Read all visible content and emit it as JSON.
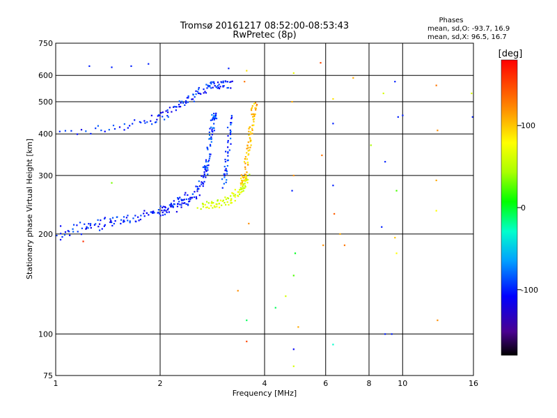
{
  "title_line1": "Tromsø 20161217 08:52:00-08:53:43",
  "title_line2": "RwPretec (8p)",
  "phases": {
    "heading": "Phases",
    "o_line": "mean, sd,O: -93.7, 16.9",
    "x_line": "mean, sd,X:  96.5, 16.7"
  },
  "colorbar": {
    "label": "[deg]",
    "ticks": [
      "100",
      "0",
      "-100"
    ],
    "range": [
      -180,
      180
    ]
  },
  "chart_data": {
    "type": "scatter",
    "xlabel": "Frequency [MHz]",
    "ylabel": "Stationary phase Virtual Height [km]",
    "x_scale": "log",
    "y_scale": "log",
    "xlim": [
      1,
      16
    ],
    "ylim": [
      75,
      750
    ],
    "x_ticks": [
      "1",
      "2",
      "4",
      "6",
      "8",
      "10",
      "16"
    ],
    "y_ticks": [
      "75",
      "100",
      "200",
      "300",
      "400",
      "500",
      "600",
      "750"
    ],
    "grid": true,
    "traces": [
      {
        "freq": [
          1.0,
          1.5,
          1.9,
          2.1,
          2.3,
          2.5,
          2.7,
          2.85,
          3.0,
          3.2
        ],
        "height": [
          400,
          420,
          440,
          460,
          490,
          520,
          550,
          560,
          570,
          560
        ],
        "phase": -100
      },
      {
        "freq": [
          1.0,
          1.3,
          1.6,
          2.0,
          2.2,
          2.4,
          2.55,
          2.65,
          2.75
        ],
        "height": [
          205,
          215,
          222,
          232,
          240,
          250,
          265,
          290,
          330
        ],
        "phase": -100
      },
      {
        "freq": [
          1.0,
          1.3,
          1.6,
          2.0,
          2.2,
          2.4
        ],
        "height": [
          195,
          210,
          222,
          235,
          250,
          265
        ],
        "phase": -100
      },
      {
        "freq": [
          2.7,
          2.75,
          2.8,
          2.85,
          2.9
        ],
        "height": [
          300,
          350,
          400,
          440,
          460
        ],
        "phase": -90
      },
      {
        "freq": [
          3.05,
          3.1,
          3.15,
          3.2
        ],
        "height": [
          280,
          320,
          380,
          450
        ],
        "phase": -95
      },
      {
        "freq": [
          2.6,
          2.8,
          3.0,
          3.2,
          3.35,
          3.5,
          3.6
        ],
        "height": [
          245,
          245,
          248,
          255,
          265,
          280,
          300
        ],
        "phase": 60
      },
      {
        "freq": [
          3.4,
          3.5,
          3.55,
          3.6,
          3.65,
          3.7,
          3.75
        ],
        "height": [
          280,
          300,
          330,
          370,
          410,
          460,
          500
        ],
        "phase": 100
      }
    ],
    "scatter_points": [
      {
        "freq": 1.25,
        "height": 640,
        "phase": -100
      },
      {
        "freq": 1.45,
        "height": 635,
        "phase": -100
      },
      {
        "freq": 1.65,
        "height": 640,
        "phase": -100
      },
      {
        "freq": 1.85,
        "height": 650,
        "phase": -100
      },
      {
        "freq": 3.15,
        "height": 630,
        "phase": -100
      },
      {
        "freq": 3.5,
        "height": 575,
        "phase": 130
      },
      {
        "freq": 3.55,
        "height": 620,
        "phase": 90
      },
      {
        "freq": 3.8,
        "height": 490,
        "phase": 140
      },
      {
        "freq": 4.85,
        "height": 610,
        "phase": 70
      },
      {
        "freq": 4.8,
        "height": 500,
        "phase": 110
      },
      {
        "freq": 4.85,
        "height": 300,
        "phase": 120
      },
      {
        "freq": 4.8,
        "height": 270,
        "phase": -100
      },
      {
        "freq": 4.9,
        "height": 175,
        "phase": 0
      },
      {
        "freq": 4.85,
        "height": 150,
        "phase": 20
      },
      {
        "freq": 4.6,
        "height": 130,
        "phase": 60
      },
      {
        "freq": 4.85,
        "height": 90,
        "phase": -110
      },
      {
        "freq": 5.8,
        "height": 655,
        "phase": 150
      },
      {
        "freq": 5.85,
        "height": 345,
        "phase": 130
      },
      {
        "freq": 5.9,
        "height": 185,
        "phase": 120
      },
      {
        "freq": 6.3,
        "height": 510,
        "phase": 90
      },
      {
        "freq": 6.3,
        "height": 430,
        "phase": -100
      },
      {
        "freq": 6.3,
        "height": 280,
        "phase": -100
      },
      {
        "freq": 6.35,
        "height": 230,
        "phase": 140
      },
      {
        "freq": 6.6,
        "height": 200,
        "phase": 110
      },
      {
        "freq": 6.8,
        "height": 185,
        "phase": 130
      },
      {
        "freq": 6.3,
        "height": 93,
        "phase": -30
      },
      {
        "freq": 8.1,
        "height": 370,
        "phase": 40
      },
      {
        "freq": 8.8,
        "height": 530,
        "phase": 60
      },
      {
        "freq": 8.9,
        "height": 330,
        "phase": -100
      },
      {
        "freq": 8.7,
        "height": 210,
        "phase": -100
      },
      {
        "freq": 9.5,
        "height": 195,
        "phase": 100
      },
      {
        "freq": 9.6,
        "height": 175,
        "phase": 80
      },
      {
        "freq": 9.5,
        "height": 575,
        "phase": -100
      },
      {
        "freq": 9.7,
        "height": 450,
        "phase": -100
      },
      {
        "freq": 9.6,
        "height": 270,
        "phase": 20
      },
      {
        "freq": 8.9,
        "height": 100,
        "phase": -100
      },
      {
        "freq": 9.3,
        "height": 100,
        "phase": -100
      },
      {
        "freq": 12.5,
        "height": 560,
        "phase": 130
      },
      {
        "freq": 12.6,
        "height": 410,
        "phase": 120
      },
      {
        "freq": 12.5,
        "height": 290,
        "phase": 110
      },
      {
        "freq": 12.5,
        "height": 235,
        "phase": 80
      },
      {
        "freq": 12.6,
        "height": 110,
        "phase": 120
      },
      {
        "freq": 15.8,
        "height": 530,
        "phase": 60
      },
      {
        "freq": 15.9,
        "height": 450,
        "phase": -100
      },
      {
        "freq": 3.55,
        "height": 110,
        "phase": -10
      },
      {
        "freq": 3.55,
        "height": 95,
        "phase": 150
      },
      {
        "freq": 3.6,
        "height": 215,
        "phase": 120
      },
      {
        "freq": 1.2,
        "height": 190,
        "phase": 160
      },
      {
        "freq": 1.45,
        "height": 285,
        "phase": 30
      },
      {
        "freq": 3.35,
        "height": 135,
        "phase": 120
      },
      {
        "freq": 4.3,
        "height": 120,
        "phase": -10
      },
      {
        "freq": 5.0,
        "height": 105,
        "phase": 110
      },
      {
        "freq": 4.85,
        "height": 80,
        "phase": 60
      },
      {
        "freq": 7.2,
        "height": 590,
        "phase": 110
      },
      {
        "freq": 10.0,
        "height": 455,
        "phase": -100
      }
    ]
  }
}
